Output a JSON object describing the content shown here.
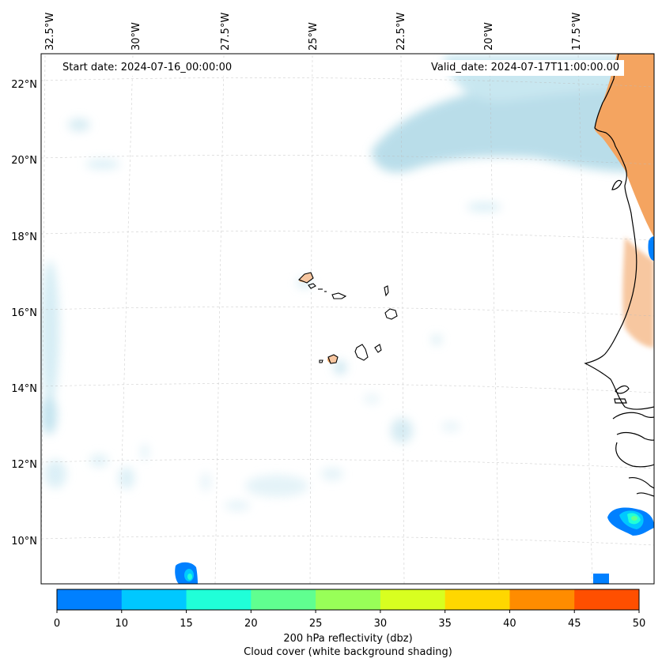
{
  "map": {
    "start_date": "Start date: 2024-07-16_00:00:00",
    "valid_date": "Valid_date: 2024-07-17T11:00:00.00",
    "lon_labels": [
      "32.5°W",
      "30°W",
      "27.5°W",
      "25°W",
      "22.5°W",
      "20°W",
      "17.5°W"
    ],
    "lat_labels": [
      "22°N",
      "20°N",
      "18°N",
      "16°N",
      "14°N",
      "12°N",
      "10°N"
    ]
  },
  "colorbar": {
    "ticks": [
      "0",
      "10",
      "15",
      "20",
      "25",
      "30",
      "35",
      "40",
      "45",
      "50"
    ],
    "colors": [
      "#0080ff",
      "#00c8ff",
      "#20ffd8",
      "#60ff90",
      "#98ff58",
      "#d8ff20",
      "#ffd700",
      "#ff8c00",
      "#ff4f00"
    ],
    "label": "200 hPa reflectivity (dbz)",
    "sublabel": "Cloud cover (white background shading)"
  },
  "colors": {
    "cloud": "#add8e6",
    "high_cloud": "#f4a460",
    "coast": "#000000"
  }
}
